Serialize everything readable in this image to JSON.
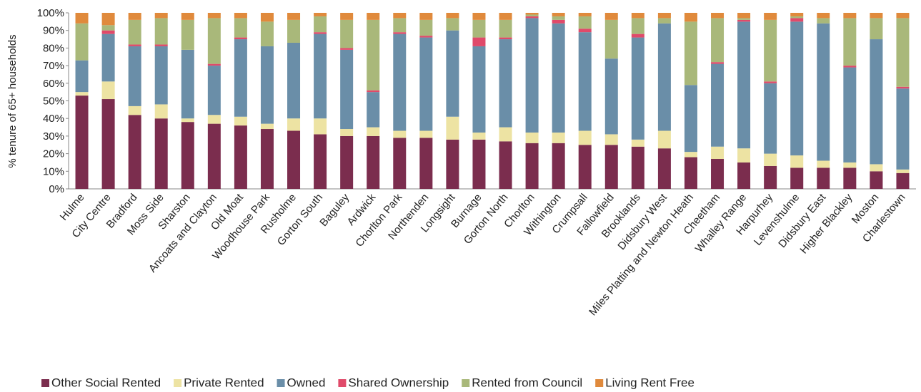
{
  "chart_data": {
    "type": "stacked_bar",
    "y_label": "% tenure of 65+ households",
    "categories": [
      "Hulme",
      "City Centre",
      "Bradford",
      "Moss Side",
      "Sharston",
      "Ancoats and Clayton",
      "Old Moat",
      "Woodhouse Park",
      "Rusholme",
      "Gorton South",
      "Baguley",
      "Ardwick",
      "Chorlton Park",
      "Northenden",
      "Longsight",
      "Burnage",
      "Gorton North",
      "Chorlton",
      "Withington",
      "Crumpsall",
      "Fallowfield",
      "Brooklands",
      "Didsbury West",
      "Miles Platting and Newton Heath",
      "Cheetham",
      "Whalley Range",
      "Harpurhey",
      "Levenshulme",
      "Didsbury East",
      "Higher Blackley",
      "Moston",
      "Charlestown"
    ],
    "series": [
      {
        "name": "Other Social Rented",
        "color": "#7b2d4e",
        "values": [
          53,
          51,
          42,
          40,
          38,
          37,
          36,
          34,
          33,
          31,
          30,
          30,
          29,
          29,
          28,
          28,
          27,
          26,
          26,
          25,
          25,
          24,
          23,
          18,
          17,
          15,
          13,
          12,
          12,
          12,
          10,
          9
        ]
      },
      {
        "name": "Private Rented",
        "color": "#ede3a3",
        "values": [
          2,
          10,
          5,
          8,
          2,
          5,
          5,
          3,
          7,
          9,
          4,
          5,
          4,
          4,
          13,
          4,
          8,
          6,
          6,
          8,
          6,
          4,
          10,
          3,
          7,
          8,
          7,
          7,
          4,
          3,
          4,
          2
        ]
      },
      {
        "name": "Owned",
        "color": "#6a8ea8",
        "values": [
          18,
          27,
          34,
          33,
          39,
          28,
          44,
          44,
          43,
          48,
          45,
          20,
          55,
          53,
          49,
          49,
          50,
          65,
          62,
          56,
          43,
          58,
          61,
          38,
          47,
          72,
          40,
          76,
          78,
          54,
          71,
          46
        ]
      },
      {
        "name": "Shared Ownership",
        "color": "#e04a6a",
        "values": [
          0,
          2,
          1,
          1,
          0,
          1,
          1,
          0,
          0,
          1,
          1,
          1,
          1,
          1,
          0,
          5,
          1,
          1,
          2,
          2,
          0,
          2,
          0,
          0,
          1,
          1,
          1,
          2,
          0,
          1,
          0,
          1
        ]
      },
      {
        "name": "Rented from Council",
        "color": "#a9b87a",
        "values": [
          21,
          3,
          14,
          15,
          17,
          26,
          11,
          14,
          13,
          9,
          16,
          40,
          8,
          9,
          7,
          10,
          10,
          1,
          2,
          7,
          22,
          9,
          3,
          36,
          25,
          1,
          35,
          1,
          3,
          27,
          12,
          39
        ]
      },
      {
        "name": "Living Rent Free",
        "color": "#e08a3c",
        "values": [
          6,
          7,
          4,
          3,
          4,
          3,
          3,
          5,
          4,
          2,
          4,
          4,
          3,
          4,
          3,
          4,
          4,
          1,
          2,
          2,
          4,
          3,
          3,
          5,
          3,
          3,
          4,
          2,
          3,
          3,
          3,
          3
        ]
      }
    ],
    "ylim": [
      0,
      100
    ],
    "yticks": [
      {
        "value": 0,
        "label": "0%"
      },
      {
        "value": 10,
        "label": "10%"
      },
      {
        "value": 20,
        "label": "20%"
      },
      {
        "value": 30,
        "label": "30%"
      },
      {
        "value": 40,
        "label": "40%"
      },
      {
        "value": 50,
        "label": "50%"
      },
      {
        "value": 60,
        "label": "60%"
      },
      {
        "value": 70,
        "label": "70%"
      },
      {
        "value": 80,
        "label": "80%"
      },
      {
        "value": 90,
        "label": "90%"
      },
      {
        "value": 100,
        "label": "100%"
      }
    ],
    "legend": "bottom"
  }
}
